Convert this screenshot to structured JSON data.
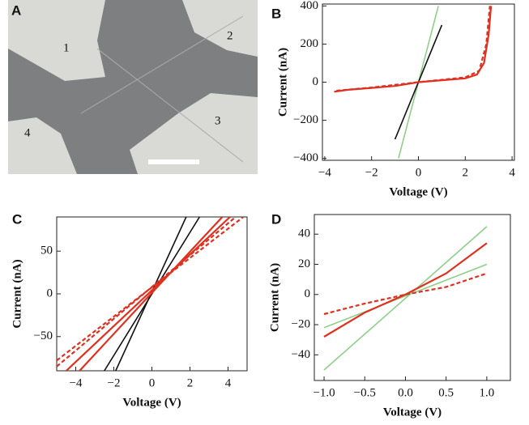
{
  "image_panel": {
    "label": "A",
    "regions": [
      "1",
      "2",
      "3",
      "4"
    ]
  },
  "chart_data": [
    {
      "type": "line",
      "label": "B",
      "xlabel": "Voltage (V)",
      "ylabel": "Current (nA)",
      "xlim": [
        -4.1,
        4.1
      ],
      "ylim": [
        -410,
        410
      ],
      "xticks": [
        {
          "value": -4,
          "label": "−4"
        },
        {
          "value": -2,
          "label": "−2"
        },
        0,
        2,
        4
      ],
      "yticks": [
        {
          "value": -400,
          "label": "−400"
        },
        {
          "value": -200,
          "label": "−200"
        },
        0,
        200,
        400
      ],
      "series": [
        {
          "color": "#8fcf8a",
          "x": [
            -0.85,
            0.85
          ],
          "values": [
            -400,
            400
          ]
        },
        {
          "color": "#111111",
          "x": [
            -1.0,
            1.0
          ],
          "values": [
            -300,
            300
          ]
        },
        {
          "color": "#e03020",
          "x": [
            -3.6,
            -3,
            -2,
            -1,
            0,
            1,
            2,
            2.5,
            2.8,
            3.0,
            3.1
          ],
          "values": [
            -50,
            -40,
            -30,
            -20,
            0,
            10,
            20,
            40,
            100,
            250,
            400
          ]
        },
        {
          "color": "#e03020",
          "dashed": true,
          "x": [
            -3.5,
            -2,
            0,
            2,
            2.6,
            2.9,
            3.05
          ],
          "values": [
            -45,
            -28,
            0,
            25,
            60,
            200,
            400
          ]
        }
      ]
    },
    {
      "type": "line",
      "label": "C",
      "xlabel": "Voltage (V)",
      "ylabel": "Current (nA)",
      "xlim": [
        -5,
        5
      ],
      "ylim": [
        -90,
        90
      ],
      "xticks": [
        {
          "value": -4,
          "label": "−4"
        },
        {
          "value": -2,
          "label": "−2"
        },
        0,
        2,
        4
      ],
      "yticks": [
        {
          "value": -50,
          "label": "−50"
        },
        0,
        50
      ],
      "series": [
        {
          "color": "#111111",
          "x": [
            -1.9,
            1.8
          ],
          "values": [
            -90,
            90
          ]
        },
        {
          "color": "#111111",
          "x": [
            -2.5,
            2.5
          ],
          "values": [
            -90,
            90
          ]
        },
        {
          "color": "#e03020",
          "x": [
            -3.8,
            3.7
          ],
          "values": [
            -90,
            90
          ]
        },
        {
          "color": "#e03020",
          "x": [
            -4.5,
            4.1
          ],
          "values": [
            -90,
            90
          ]
        },
        {
          "color": "#e03020",
          "dashed": true,
          "x": [
            -5,
            4.4
          ],
          "values": [
            -85,
            90
          ]
        },
        {
          "color": "#e03020",
          "dashed": true,
          "x": [
            -5,
            4.8
          ],
          "values": [
            -78,
            90
          ]
        }
      ]
    },
    {
      "type": "line",
      "label": "D",
      "xlabel": "Voltage (V)",
      "ylabel": "Current (nA)",
      "xlim": [
        -1.12,
        1.29
      ],
      "ylim": [
        -57,
        53
      ],
      "xticks": [
        {
          "value": -1,
          "label": "−1.0"
        },
        {
          "value": -0.5,
          "label": "−0.5"
        },
        {
          "value": 0,
          "label": "0.0"
        },
        {
          "value": 0.5,
          "label": "0.5"
        },
        {
          "value": 1,
          "label": "1.0"
        }
      ],
      "yticks": [
        {
          "value": -40,
          "label": "−40"
        },
        {
          "value": -20,
          "label": "−20"
        },
        0,
        20,
        40
      ],
      "series": [
        {
          "color": "#8fcf8a",
          "x": [
            -1,
            1
          ],
          "values": [
            -50,
            45
          ]
        },
        {
          "color": "#8fcf8a",
          "x": [
            -1,
            1
          ],
          "values": [
            -22,
            20
          ]
        },
        {
          "color": "#e03020",
          "x": [
            -1,
            -0.5,
            0,
            0.5,
            1
          ],
          "values": [
            -28,
            -12,
            0,
            14,
            34
          ]
        },
        {
          "color": "#e03020",
          "dashed": true,
          "x": [
            -1,
            -0.5,
            0,
            0.5,
            1
          ],
          "values": [
            -13,
            -6,
            0,
            5,
            14
          ]
        }
      ]
    }
  ]
}
